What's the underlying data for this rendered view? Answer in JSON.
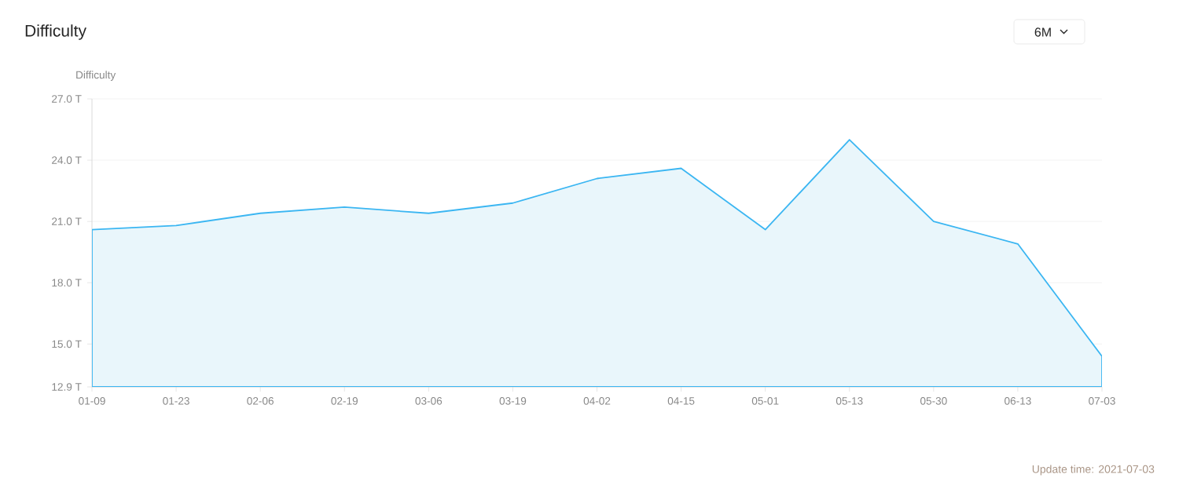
{
  "chart_data": {
    "type": "area",
    "title": "Difficulty",
    "ylabel": "Difficulty",
    "categories": [
      "01-09",
      "01-23",
      "02-06",
      "02-19",
      "03-06",
      "03-19",
      "04-02",
      "04-15",
      "05-01",
      "05-13",
      "05-30",
      "06-13",
      "07-03"
    ],
    "values": [
      20.6,
      20.8,
      21.4,
      21.7,
      21.4,
      21.9,
      23.1,
      23.6,
      20.6,
      25.0,
      21.0,
      19.9,
      14.4
    ],
    "color": "#3bb6f2",
    "ylim": [
      12.9,
      27.0
    ],
    "yticks": [
      {
        "value": 12.9,
        "label": "12.9 T"
      },
      {
        "value": 15.0,
        "label": "15.0 T"
      },
      {
        "value": 18.0,
        "label": "18.0 T"
      },
      {
        "value": 21.0,
        "label": "21.0 T"
      },
      {
        "value": 24.0,
        "label": "24.0 T"
      },
      {
        "value": 27.0,
        "label": "27.0 T"
      }
    ],
    "grid": "y",
    "annotations": [
      "6M",
      "Update time: 2021-07-03"
    ]
  }
}
